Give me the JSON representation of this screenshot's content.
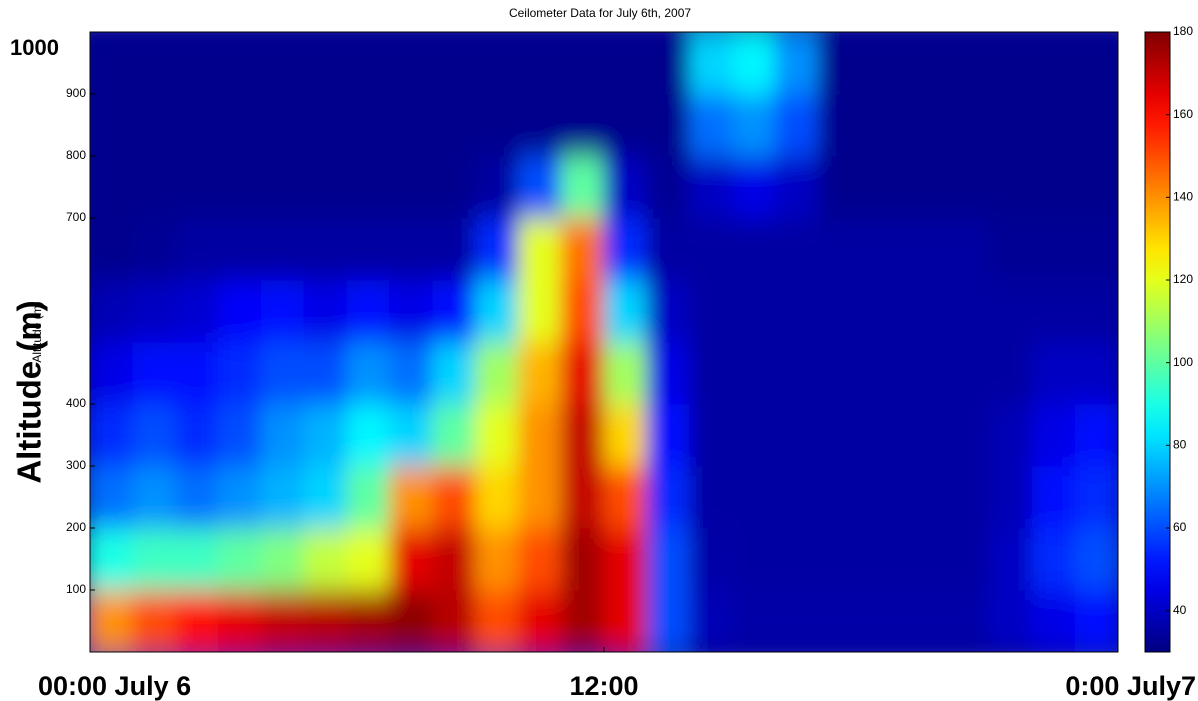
{
  "chart_data": {
    "type": "heatmap",
    "title": "Ceilometer Data for July 6th, 2007",
    "ylabel": "Altitude (m)",
    "xbins": [
      0,
      1,
      2,
      3,
      4,
      5,
      6,
      7,
      8,
      9,
      10,
      11,
      12,
      13,
      14,
      15,
      16,
      17,
      18,
      19,
      20,
      21,
      22,
      23,
      24
    ],
    "ybins": [
      0,
      100,
      200,
      300,
      400,
      500,
      600,
      700,
      800,
      900,
      1000
    ],
    "xlim": [
      0,
      24
    ],
    "xticks": [
      {
        "value": 0,
        "label": "00:00 July 6"
      },
      {
        "value": 12,
        "label": "12:00"
      },
      {
        "value": 24,
        "label": "0:00 July7"
      }
    ],
    "ylim": [
      0,
      1000
    ],
    "yticks": [
      100,
      200,
      300,
      400,
      700,
      800,
      900,
      1000
    ],
    "clim": [
      30,
      180
    ],
    "cticks": [
      40,
      60,
      80,
      100,
      120,
      140,
      160,
      180
    ],
    "colormap": "jet",
    "z": [
      [
        140,
        150,
        160,
        165,
        170,
        172,
        175,
        178,
        172,
        150,
        165,
        175,
        165,
        60,
        38,
        36,
        36,
        36,
        36,
        36,
        36,
        40,
        45,
        50
      ],
      [
        90,
        95,
        95,
        100,
        105,
        115,
        120,
        165,
        170,
        140,
        150,
        175,
        165,
        60,
        36,
        35,
        35,
        35,
        35,
        35,
        35,
        40,
        55,
        60
      ],
      [
        65,
        70,
        65,
        70,
        75,
        80,
        100,
        140,
        150,
        130,
        140,
        170,
        150,
        55,
        35,
        35,
        35,
        35,
        35,
        35,
        35,
        38,
        50,
        55
      ],
      [
        55,
        60,
        55,
        60,
        70,
        75,
        85,
        80,
        100,
        120,
        140,
        170,
        130,
        50,
        35,
        35,
        35,
        35,
        35,
        35,
        35,
        38,
        45,
        50
      ],
      [
        45,
        50,
        50,
        55,
        60,
        60,
        70,
        65,
        80,
        110,
        135,
        165,
        110,
        45,
        35,
        35,
        35,
        35,
        35,
        35,
        35,
        35,
        40,
        40
      ],
      [
        38,
        40,
        42,
        48,
        50,
        45,
        50,
        45,
        50,
        80,
        120,
        150,
        80,
        40,
        35,
        35,
        35,
        35,
        35,
        35,
        35,
        35,
        35,
        35
      ],
      [
        32,
        33,
        35,
        35,
        35,
        35,
        35,
        35,
        35,
        55,
        120,
        145,
        55,
        35,
        35,
        35,
        35,
        35,
        35,
        35,
        35,
        33,
        33,
        33
      ],
      [
        32,
        32,
        32,
        32,
        32,
        32,
        32,
        32,
        32,
        35,
        60,
        100,
        40,
        33,
        40,
        45,
        40,
        32,
        32,
        32,
        32,
        32,
        32,
        32
      ],
      [
        32,
        32,
        32,
        32,
        32,
        32,
        32,
        32,
        32,
        32,
        32,
        32,
        32,
        32,
        65,
        70,
        60,
        32,
        32,
        32,
        32,
        32,
        32,
        32
      ],
      [
        32,
        32,
        32,
        32,
        32,
        32,
        32,
        32,
        32,
        32,
        32,
        32,
        32,
        32,
        80,
        85,
        70,
        32,
        32,
        32,
        32,
        32,
        32,
        32
      ]
    ]
  }
}
